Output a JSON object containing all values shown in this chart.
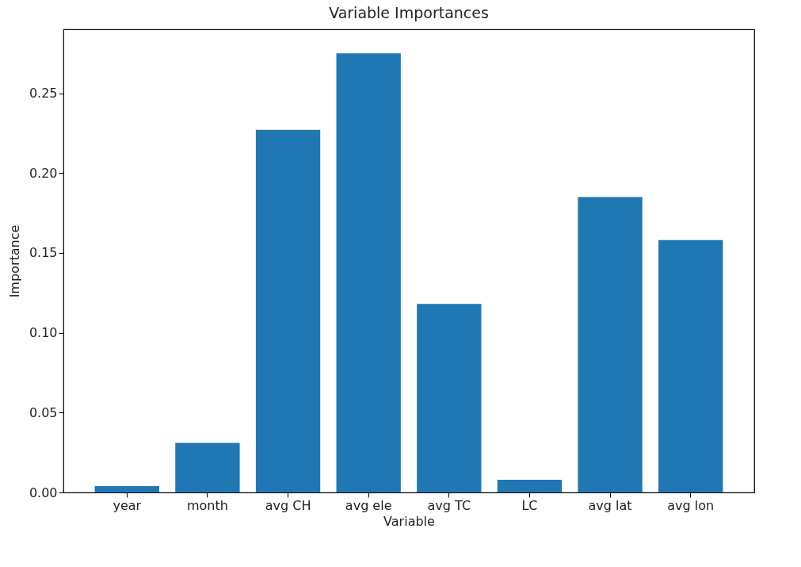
{
  "chart_data": {
    "type": "bar",
    "title": "Variable Importances",
    "xlabel": "Variable",
    "ylabel": "Importance",
    "categories": [
      "year",
      "month",
      "avg CH",
      "avg ele",
      "avg TC",
      "LC",
      "avg lat",
      "avg lon"
    ],
    "values": [
      0.004,
      0.031,
      0.227,
      0.275,
      0.118,
      0.008,
      0.185,
      0.158
    ],
    "color": "#1f77b4",
    "ylim": [
      0,
      0.29
    ],
    "yticks": [
      {
        "value": 0,
        "label": "0.00"
      },
      {
        "value": 0.05,
        "label": "0.05"
      },
      {
        "value": 0.1,
        "label": "0.10"
      },
      {
        "value": 0.15,
        "label": "0.15"
      },
      {
        "value": 0.2,
        "label": "0.20"
      },
      {
        "value": 0.25,
        "label": "0.25"
      }
    ],
    "grid": false
  }
}
